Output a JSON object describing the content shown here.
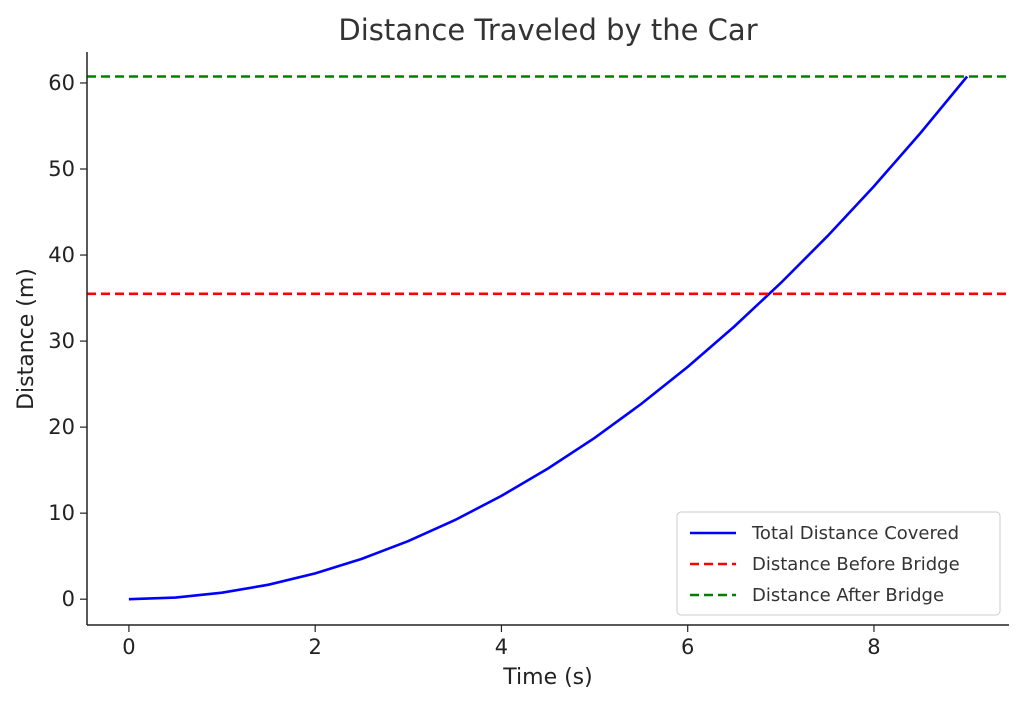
{
  "chart_data": {
    "type": "line",
    "title": "Distance Traveled by the Car",
    "xlabel": "Time (s)",
    "ylabel": "Distance (m)",
    "xlim": [
      -0.45,
      9.45
    ],
    "ylim": [
      -3.0,
      63.6
    ],
    "xticks": [
      0,
      2,
      4,
      6,
      8
    ],
    "yticks": [
      0,
      10,
      20,
      30,
      40,
      50,
      60
    ],
    "grid": false,
    "legend_position": "bottom-right",
    "series": [
      {
        "name": "Total Distance Covered",
        "style": "solid",
        "color": "#0000ff",
        "x": [
          0,
          0.5,
          1,
          1.5,
          2,
          2.5,
          3,
          3.5,
          4,
          4.5,
          5,
          5.5,
          6,
          6.5,
          7,
          7.5,
          8,
          8.5,
          9
        ],
        "y": [
          0,
          0.19,
          0.75,
          1.68,
          3.0,
          4.68,
          6.75,
          9.19,
          12.0,
          15.19,
          18.75,
          22.69,
          27.0,
          31.69,
          36.75,
          42.19,
          48.0,
          54.19,
          60.75
        ]
      },
      {
        "name": "Distance Before Bridge",
        "style": "dashed",
        "color": "#ff0000",
        "x": [
          -0.45,
          9.45
        ],
        "y": [
          35.5,
          35.5
        ]
      },
      {
        "name": "Distance After Bridge",
        "style": "dashed",
        "color": "#008000",
        "x": [
          -0.45,
          9.45
        ],
        "y": [
          60.75,
          60.75
        ]
      }
    ]
  }
}
